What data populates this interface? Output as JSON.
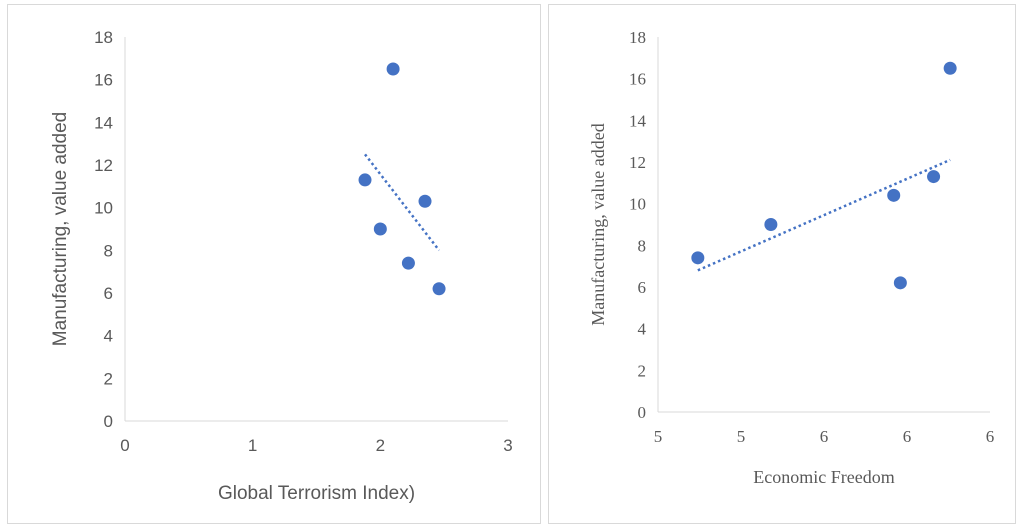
{
  "chart_data": [
    {
      "type": "scatter",
      "xlabel": "Global Terrorism Index)",
      "ylabel": "Manufacturing, value added",
      "xlim": [
        0,
        3
      ],
      "ylim": [
        0,
        18
      ],
      "x_ticks": [
        "0",
        "1",
        "2",
        "3"
      ],
      "y_ticks": [
        "0",
        "2",
        "4",
        "6",
        "8",
        "10",
        "12",
        "14",
        "16",
        "18"
      ],
      "points": [
        {
          "x": 1.88,
          "y": 11.3
        },
        {
          "x": 2.1,
          "y": 16.5
        },
        {
          "x": 2.0,
          "y": 9.0
        },
        {
          "x": 2.35,
          "y": 10.3
        },
        {
          "x": 2.22,
          "y": 7.4
        },
        {
          "x": 2.46,
          "y": 6.2
        }
      ],
      "trendline": {
        "type": "linear",
        "x_from": 1.88,
        "x_to": 2.46,
        "y_from": 12.5,
        "y_to": 8.0
      },
      "grid": false
    },
    {
      "type": "scatter",
      "xlabel": "Economic Freedom",
      "ylabel": "Manufacturing, value added",
      "xlim": [
        5,
        6
      ],
      "ylim": [
        0,
        18
      ],
      "x_ticks": [
        "5",
        "5",
        "6",
        "6",
        "6"
      ],
      "y_ticks": [
        "0",
        "2",
        "4",
        "6",
        "8",
        "10",
        "12",
        "14",
        "16",
        "18"
      ],
      "points": [
        {
          "x": 5.12,
          "y": 7.4
        },
        {
          "x": 5.34,
          "y": 9.0
        },
        {
          "x": 5.71,
          "y": 10.4
        },
        {
          "x": 5.73,
          "y": 6.2
        },
        {
          "x": 5.83,
          "y": 11.3
        },
        {
          "x": 5.88,
          "y": 16.5
        }
      ],
      "trendline": {
        "type": "linear",
        "x_from": 5.12,
        "x_to": 5.88,
        "y_from": 6.8,
        "y_to": 12.1
      },
      "grid": false
    }
  ]
}
